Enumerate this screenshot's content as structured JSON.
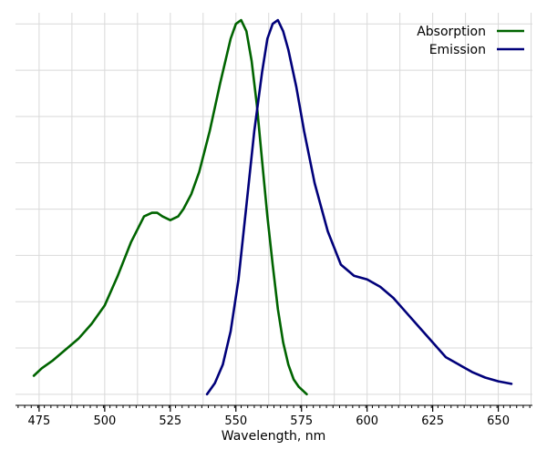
{
  "chart_data": {
    "type": "line",
    "title": "",
    "xlabel": "Wavelength, nm",
    "ylabel": "",
    "xlim": [
      466,
      663
    ],
    "ylim": [
      -0.02,
      1.04
    ],
    "xticks": [
      475,
      500,
      525,
      550,
      575,
      600,
      625,
      650
    ],
    "grid": true,
    "legend_position": "top-right",
    "series": [
      {
        "name": "Absorption",
        "color": "#006400",
        "x": [
          473,
          476,
          480,
          485,
          490,
          495,
          500,
          505,
          510,
          515,
          518,
          520,
          522,
          525,
          528,
          530,
          533,
          536,
          540,
          544,
          548,
          550,
          552,
          554,
          556,
          558,
          560,
          562,
          564,
          566,
          568,
          570,
          572,
          574,
          577
        ],
        "y": [
          0.06,
          0.08,
          0.1,
          0.13,
          0.16,
          0.2,
          0.25,
          0.33,
          0.42,
          0.49,
          0.5,
          0.5,
          0.49,
          0.48,
          0.49,
          0.51,
          0.55,
          0.61,
          0.72,
          0.85,
          0.97,
          1.01,
          1.02,
          0.99,
          0.91,
          0.79,
          0.64,
          0.49,
          0.36,
          0.24,
          0.15,
          0.09,
          0.05,
          0.03,
          0.01
        ]
      },
      {
        "name": "Emission",
        "color": "#00007a",
        "x": [
          539,
          542,
          545,
          548,
          551,
          554,
          557,
          560,
          562,
          564,
          566,
          568,
          570,
          573,
          576,
          580,
          585,
          590,
          595,
          600,
          605,
          610,
          615,
          620,
          625,
          630,
          635,
          640,
          645,
          650,
          655
        ],
        "y": [
          0.01,
          0.04,
          0.09,
          0.18,
          0.32,
          0.52,
          0.72,
          0.88,
          0.97,
          1.01,
          1.02,
          0.99,
          0.94,
          0.84,
          0.72,
          0.58,
          0.45,
          0.36,
          0.33,
          0.32,
          0.3,
          0.27,
          0.23,
          0.19,
          0.15,
          0.11,
          0.09,
          0.07,
          0.055,
          0.045,
          0.038
        ]
      }
    ]
  }
}
